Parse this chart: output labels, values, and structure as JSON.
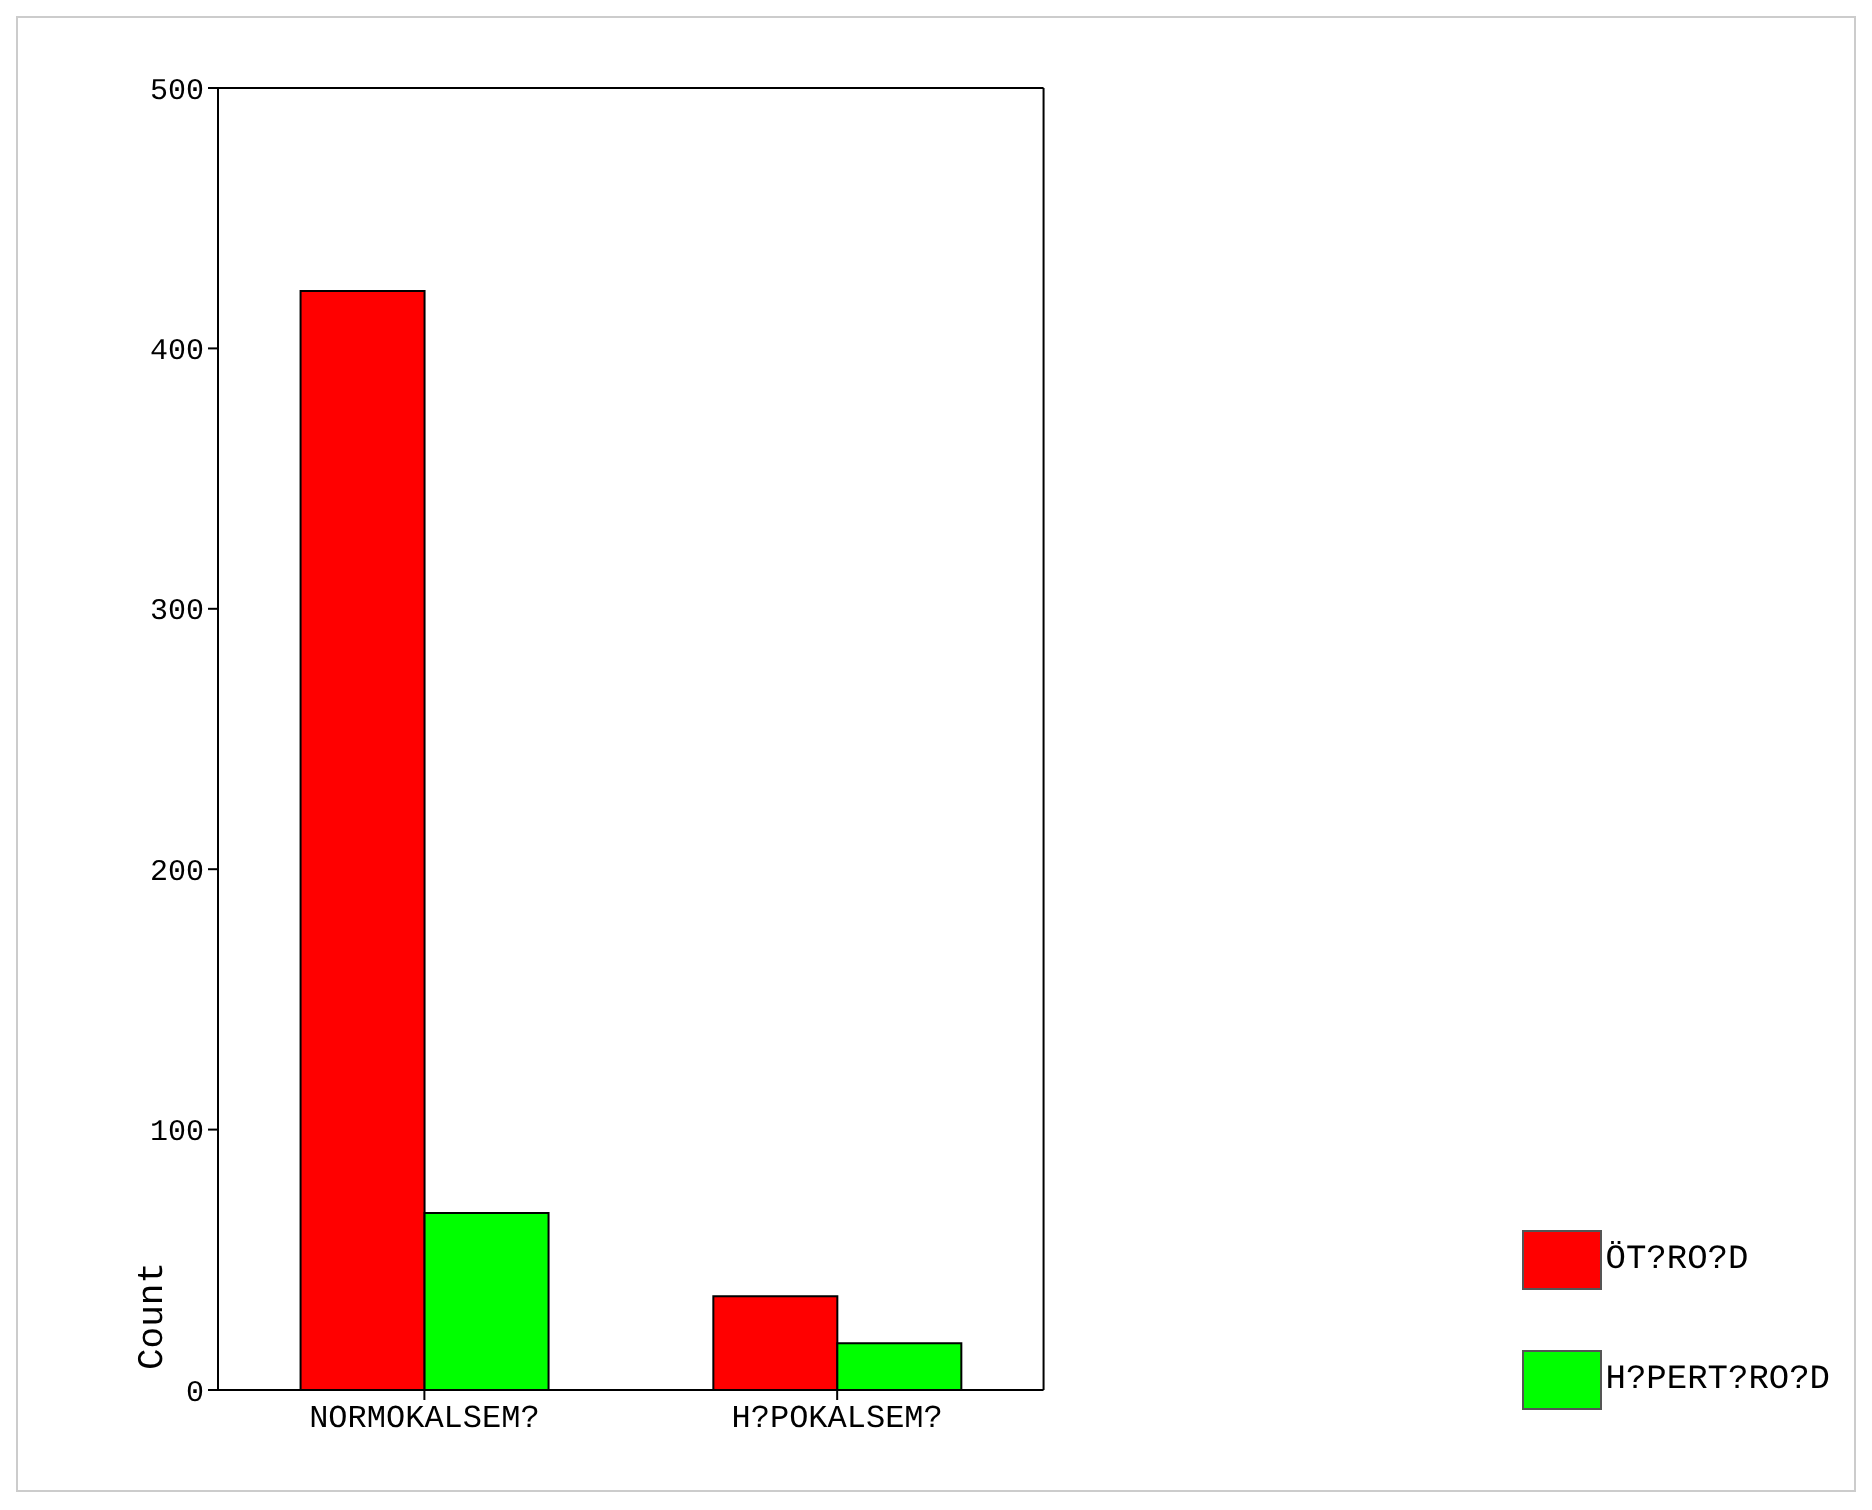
{
  "chart_data": {
    "type": "bar",
    "ylabel": "Count",
    "categories": [
      "NORMOKALSEM?",
      "H?POKALSEM?"
    ],
    "series": [
      {
        "name": "ÖT?RO?D",
        "color": "#ff0000",
        "values": [
          422,
          36
        ]
      },
      {
        "name": "H?PERT?RO?D",
        "color": "#00ff00",
        "values": [
          68,
          18
        ]
      }
    ],
    "ylim": [
      0,
      500
    ],
    "yticks": [
      0,
      100,
      200,
      300,
      400,
      500
    ],
    "grid": false,
    "legend": "bottom right"
  }
}
